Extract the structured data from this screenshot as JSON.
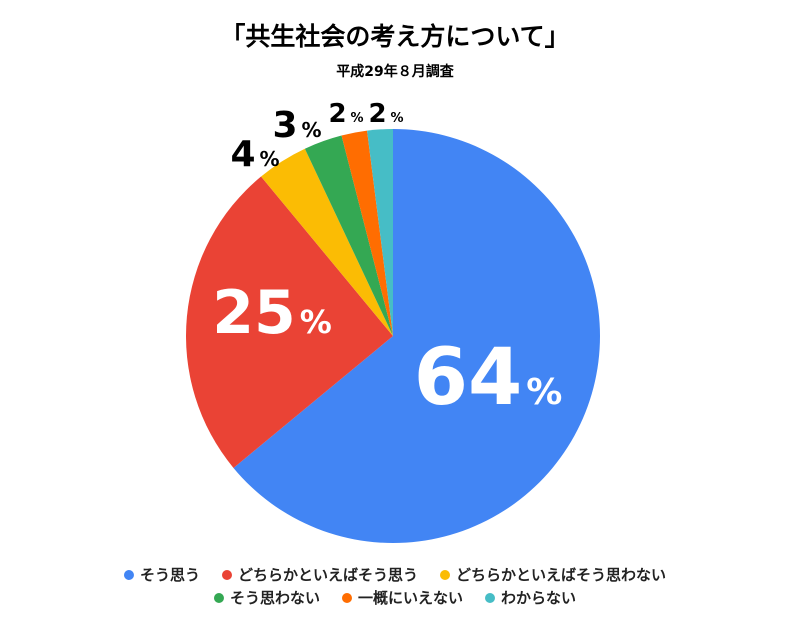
{
  "chart_data": {
    "type": "pie",
    "title": "「共生社会の考え方について」",
    "subtitle": "平成29年８月調査",
    "slices": [
      {
        "label": "そう思う",
        "value": 64,
        "color": "#4285F4"
      },
      {
        "label": "どちらかといえばそう思う",
        "value": 25,
        "color": "#EA4335"
      },
      {
        "label": "どちらかといえばそう思わない",
        "value": 4,
        "color": "#FBBC04"
      },
      {
        "label": "そう思わない",
        "value": 3,
        "color": "#34A853"
      },
      {
        "label": "一概にいえない",
        "value": 2,
        "color": "#FF6D01"
      },
      {
        "label": "わからない",
        "value": 2,
        "color": "#46BDC6"
      }
    ],
    "value_suffix": "%",
    "legend_position": "bottom"
  }
}
